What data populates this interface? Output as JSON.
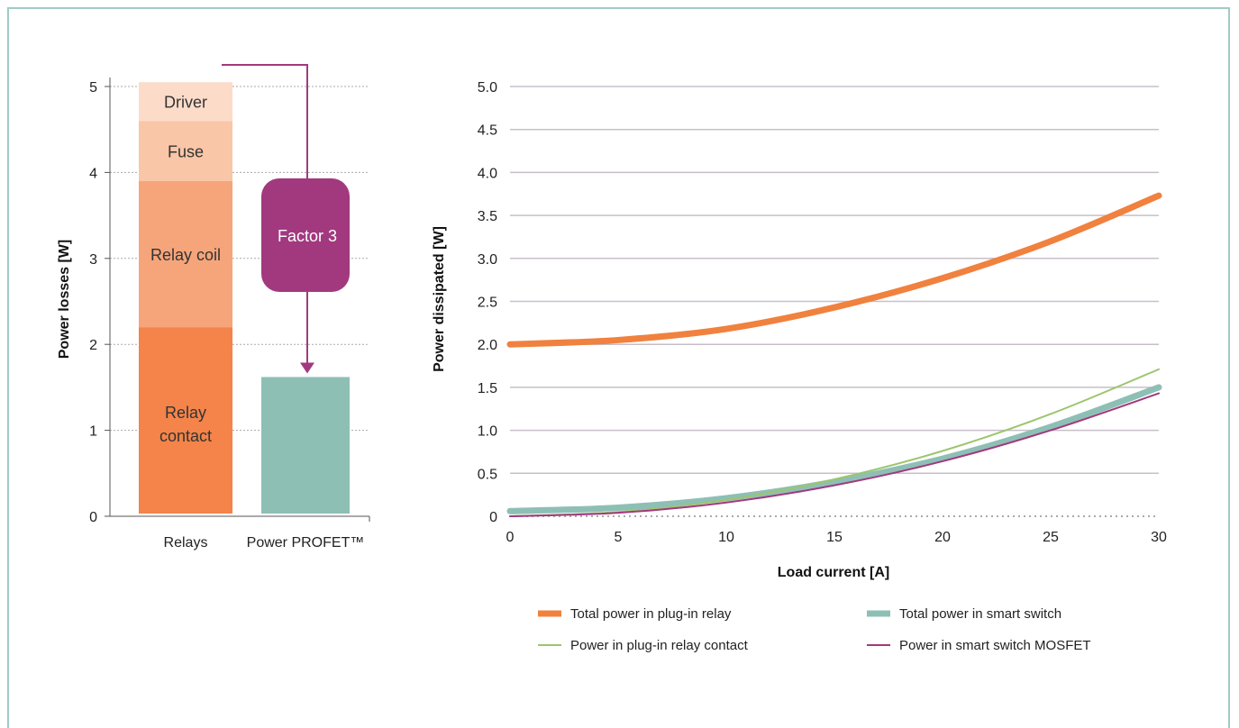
{
  "colors": {
    "relay_contact": "#f4844a",
    "relay_coil": "#f6a57b",
    "fuse": "#f9c6a7",
    "driver": "#fcdcc9",
    "profet": "#8ebfb5",
    "factor": "#a2397f",
    "frame": "#9ecdc4",
    "total_relay": "#f0813e",
    "total_smart": "#8ebfb5",
    "relay_contact_line": "#9cc56e",
    "mosfet_line": "#a2397f"
  },
  "chart_data": [
    {
      "type": "bar",
      "stacked": true,
      "ylabel": "Power losses [W]",
      "ylim": [
        0,
        5
      ],
      "yticks": [
        "0",
        "1",
        "2",
        "3",
        "4",
        "5"
      ],
      "grid": true,
      "categories": [
        "Relays",
        "Power PROFET™"
      ],
      "series": [
        {
          "name": "Relay contact",
          "values": [
            2.2,
            0
          ]
        },
        {
          "name": "Relay coil",
          "values": [
            1.7,
            0
          ]
        },
        {
          "name": "Fuse",
          "values": [
            0.7,
            0
          ]
        },
        {
          "name": "Driver",
          "values": [
            0.45,
            0
          ]
        },
        {
          "name": "",
          "values": [
            0,
            1.62
          ]
        }
      ],
      "segment_labels": {
        "relay_contact": [
          "Relay",
          "contact"
        ],
        "relay_coil": "Relay coil",
        "fuse": "Fuse",
        "driver": "Driver"
      },
      "annotation": {
        "label": "Factor 3",
        "from": 5.25,
        "to": 1.62
      }
    },
    {
      "type": "line",
      "xlabel": "Load current [A]",
      "ylabel": "Power dissipated [W]",
      "xlim": [
        0,
        30
      ],
      "ylim": [
        0,
        5
      ],
      "xticks": [
        "0",
        "5",
        "10",
        "15",
        "20",
        "25",
        "30"
      ],
      "yticks": [
        "0",
        "0.5",
        "1.0",
        "1.5",
        "2.0",
        "2.5",
        "3.0",
        "3.5",
        "4.0",
        "4.5",
        "5.0"
      ],
      "grid": true,
      "legend_position": "bottom",
      "series": [
        {
          "name": "Total power in plug-in relay",
          "x": [
            0,
            5,
            10,
            15,
            20,
            25,
            30
          ],
          "values": [
            2.0,
            2.05,
            2.18,
            2.43,
            2.77,
            3.2,
            3.73
          ]
        },
        {
          "name": "Total power in smart switch",
          "x": [
            0,
            5,
            10,
            15,
            20,
            25,
            30
          ],
          "values": [
            0.06,
            0.1,
            0.21,
            0.4,
            0.67,
            1.04,
            1.5
          ]
        },
        {
          "name": "Power in plug-in relay contact",
          "x": [
            0,
            5,
            10,
            15,
            20,
            25,
            30
          ],
          "values": [
            0.0,
            0.05,
            0.19,
            0.43,
            0.76,
            1.19,
            1.71
          ]
        },
        {
          "name": "Power in smart switch MOSFET",
          "x": [
            0,
            5,
            10,
            15,
            20,
            25,
            30
          ],
          "values": [
            0.0,
            0.04,
            0.16,
            0.36,
            0.64,
            1.0,
            1.43
          ]
        }
      ]
    }
  ]
}
